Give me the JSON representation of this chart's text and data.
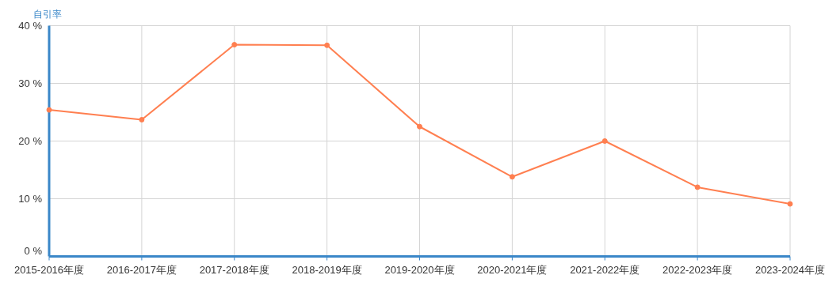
{
  "chart_data": {
    "type": "line",
    "ylabel": "自引率",
    "categories": [
      "2015-2016年度",
      "2016-2017年度",
      "2017-2018年度",
      "2018-2019年度",
      "2019-2020年度",
      "2020-2021年度",
      "2021-2022年度",
      "2022-2023年度",
      "2023-2024年度"
    ],
    "series": [
      {
        "color": "#ff7f50",
        "values": [
          25.4,
          23.7,
          36.7,
          36.6,
          22.5,
          13.8,
          20.0,
          12.0,
          9.1
        ]
      }
    ],
    "ylim": [
      0,
      40
    ],
    "yticks": [
      {
        "value": 0,
        "label": "0 %"
      },
      {
        "value": 10,
        "label": "10 %"
      },
      {
        "value": 20,
        "label": "20 %"
      },
      {
        "value": 30,
        "label": "30 %"
      },
      {
        "value": 40,
        "label": "40 %"
      }
    ],
    "grid": true,
    "marker": "circle",
    "line_style": "solid"
  }
}
